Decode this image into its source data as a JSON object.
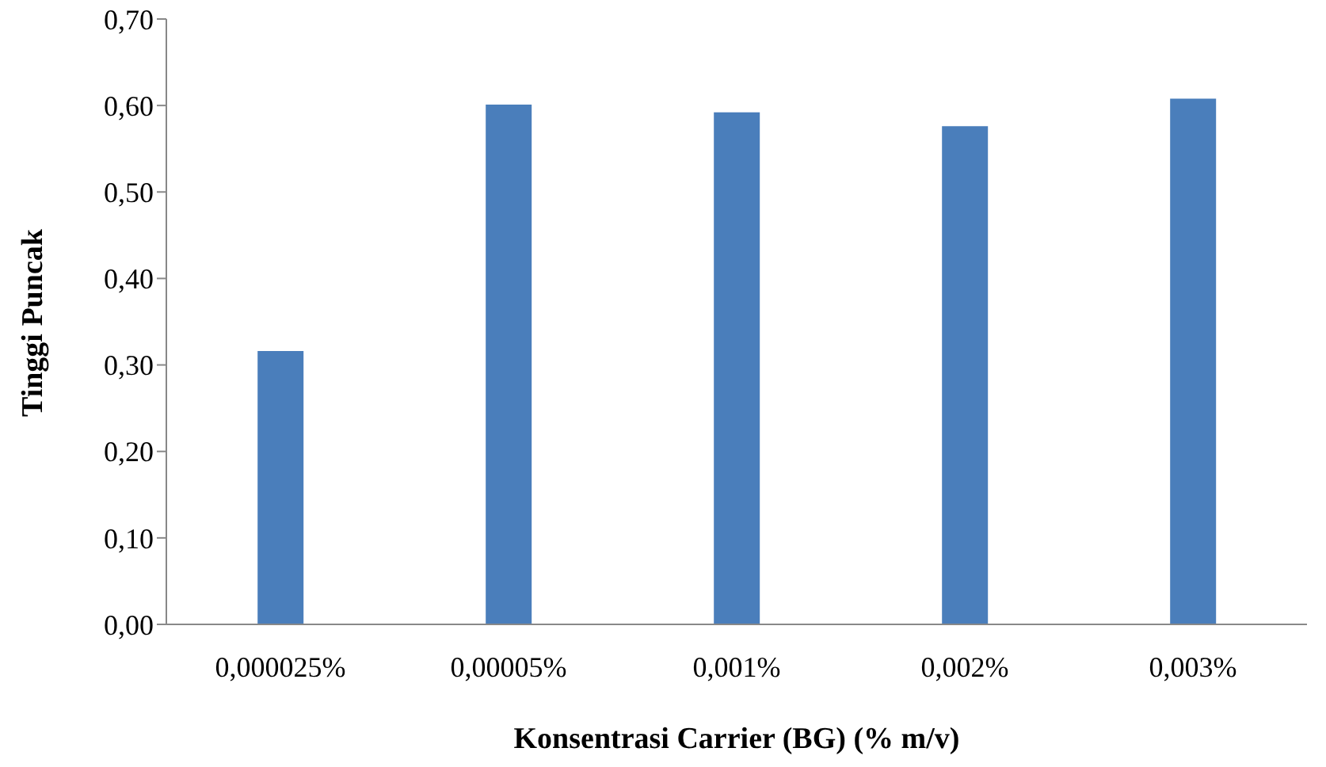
{
  "chart_data": {
    "type": "bar",
    "xlabel": "Konsentrasi Carrier (BG) (% m/v)",
    "ylabel": "Tinggi Puncak",
    "categories": [
      "0,000025%",
      "0,00005%",
      "0,001%",
      "0,002%",
      "0,003%"
    ],
    "values": [
      0.316,
      0.601,
      0.592,
      0.576,
      0.608
    ],
    "color": "#4a7ebb",
    "ylim": [
      0,
      0.7
    ],
    "yticks": [
      {
        "value": 0,
        "label": "0,00"
      },
      {
        "value": 0.1,
        "label": "0,10"
      },
      {
        "value": 0.2,
        "label": "0,20"
      },
      {
        "value": 0.3,
        "label": "0,30"
      },
      {
        "value": 0.4,
        "label": "0,40"
      },
      {
        "value": 0.5,
        "label": "0,50"
      },
      {
        "value": 0.6,
        "label": "0,60"
      },
      {
        "value": 0.7,
        "label": "0,70"
      }
    ],
    "grid": false,
    "legend": false
  }
}
